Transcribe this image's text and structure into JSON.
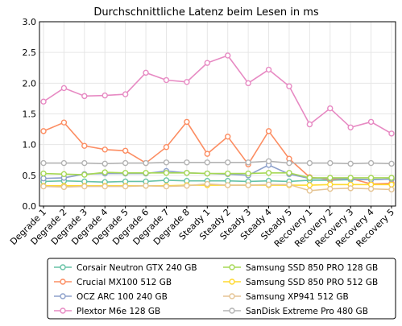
{
  "chart_data": {
    "type": "line",
    "title": "Durchschnittliche Latenz beim Lesen in ms",
    "xlabel": "",
    "ylabel": "",
    "categories": [
      "Degrade 1",
      "Degrade 2",
      "Degrade 3",
      "Degrade 4",
      "Degrade 5",
      "Degrade 6",
      "Degrade 7",
      "Degrade 8",
      "Steady 1",
      "Steady 2",
      "Steady 3",
      "Steady 4",
      "Steady 5",
      "Recovery 1",
      "Recovery 2",
      "Recovery 3",
      "Recovery 4",
      "Recovery 5"
    ],
    "ylim": [
      0,
      3.0
    ],
    "yticks": [
      "0.0",
      "0.5",
      "1.0",
      "1.5",
      "2.0",
      "2.5",
      "3.0"
    ],
    "grid": true,
    "legend_position": "bottom",
    "series": [
      {
        "name": "Corsair Neutron GTX 240 GB",
        "color": "#66c2a5",
        "values": [
          0.4,
          0.41,
          0.4,
          0.39,
          0.4,
          0.4,
          0.42,
          0.41,
          0.41,
          0.41,
          0.4,
          0.41,
          0.4,
          0.42,
          0.42,
          0.43,
          0.43,
          0.44
        ]
      },
      {
        "name": "Crucial MX100 512 GB",
        "color": "#fc8d62",
        "values": [
          1.22,
          1.36,
          0.98,
          0.92,
          0.9,
          0.7,
          0.96,
          1.37,
          0.85,
          1.13,
          0.68,
          1.22,
          0.77,
          0.47,
          0.43,
          0.45,
          0.36,
          0.37
        ]
      },
      {
        "name": "OCZ ARC 100 240 GB",
        "color": "#8da0cb",
        "values": [
          0.45,
          0.46,
          0.52,
          0.53,
          0.53,
          0.53,
          0.57,
          0.54,
          0.53,
          0.52,
          0.5,
          0.67,
          0.52,
          0.45,
          0.45,
          0.44,
          0.43,
          0.44
        ]
      },
      {
        "name": "Plextor M6e 128 GB",
        "color": "#e78ac3",
        "values": [
          1.7,
          1.92,
          1.79,
          1.8,
          1.82,
          2.17,
          2.05,
          2.02,
          2.33,
          2.45,
          2.0,
          2.22,
          1.95,
          1.33,
          1.59,
          1.28,
          1.37,
          1.18
        ]
      },
      {
        "name": "Samsung SSD 850 PRO 128 GB",
        "color": "#a6d854",
        "values": [
          0.53,
          0.52,
          0.51,
          0.55,
          0.54,
          0.54,
          0.54,
          0.54,
          0.53,
          0.53,
          0.53,
          0.54,
          0.54,
          0.46,
          0.46,
          0.46,
          0.46,
          0.46
        ]
      },
      {
        "name": "Samsung SSD 850 PRO 512 GB",
        "color": "#ffd92f",
        "values": [
          0.33,
          0.33,
          0.33,
          0.33,
          0.33,
          0.33,
          0.33,
          0.34,
          0.34,
          0.34,
          0.34,
          0.34,
          0.34,
          0.34,
          0.35,
          0.35,
          0.35,
          0.35
        ]
      },
      {
        "name": "Samsung XP941 512 GB",
        "color": "#e5c494",
        "values": [
          0.32,
          0.31,
          0.32,
          0.32,
          0.32,
          0.33,
          0.32,
          0.33,
          0.36,
          0.34,
          0.34,
          0.35,
          0.35,
          0.25,
          0.28,
          0.29,
          0.28,
          0.27
        ]
      },
      {
        "name": "SanDisk Extreme Pro 480 GB",
        "color": "#b3b3b3",
        "values": [
          0.7,
          0.7,
          0.7,
          0.69,
          0.7,
          0.7,
          0.71,
          0.71,
          0.71,
          0.71,
          0.71,
          0.73,
          0.7,
          0.7,
          0.7,
          0.69,
          0.7,
          0.69
        ]
      }
    ]
  }
}
